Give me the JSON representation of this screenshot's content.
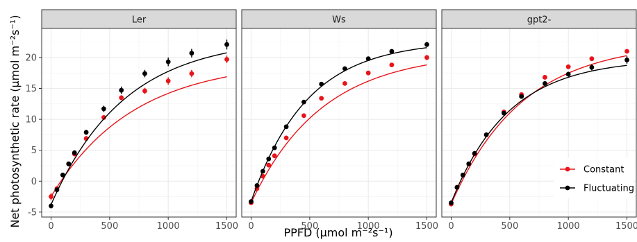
{
  "chart_data": {
    "type": "scatter",
    "xlabel": "PPFD (μmol m⁻²s⁻¹)",
    "ylabel": "Net photosynthetic rate (μmol m⁻²s⁻¹)",
    "xlim": [
      -80,
      1580
    ],
    "ylim": [
      -5.8,
      24.7
    ],
    "x_ticks": [
      0,
      500,
      1000,
      1500
    ],
    "y_ticks": [
      -5,
      0,
      5,
      10,
      15,
      20
    ],
    "x_tick_labels": [
      "0",
      "500",
      "1000",
      "1500"
    ],
    "y_tick_labels": [
      "-5",
      "0",
      "5",
      "10",
      "15",
      "20"
    ],
    "grid": true,
    "legend": {
      "position": "bottom-right of right panel",
      "entries": [
        {
          "label": "Constant",
          "color": "#e8141a"
        },
        {
          "label": "Fluctuating",
          "color": "#000000"
        }
      ]
    },
    "x": [
      0,
      50,
      100,
      150,
      200,
      300,
      450,
      600,
      800,
      1000,
      1200,
      1500
    ],
    "panels": [
      {
        "title": "Ler",
        "series": [
          {
            "name": "Constant",
            "color": "#e8141a",
            "y": [
              -2.5,
              -1.2,
              1.0,
              2.8,
              4.4,
              6.9,
              10.3,
              13.5,
              14.6,
              16.2,
              17.4,
              19.7
            ],
            "err": [
              0.6,
              0.4,
              0.3,
              0.3,
              0.4,
              0.4,
              0.3,
              0.4,
              0.5,
              0.6,
              0.6,
              0.6
            ],
            "fit": {
              "amax": 21.95,
              "rd": 2.5,
              "k": 0.00143
            }
          },
          {
            "name": "Fluctuating",
            "color": "#000000",
            "y": [
              -4.0,
              -1.4,
              1.0,
              2.8,
              4.6,
              7.9,
              11.7,
              14.7,
              17.4,
              19.3,
              20.7,
              22.1
            ],
            "err": [
              0.4,
              0.3,
              0.3,
              0.3,
              0.3,
              0.4,
              0.5,
              0.6,
              0.6,
              0.7,
              0.7,
              0.8
            ],
            "fit": {
              "amax": 27.0,
              "rd": 3.8,
              "k": 0.0016
            }
          }
        ]
      },
      {
        "title": "Ws",
        "series": [
          {
            "name": "Constant",
            "color": "#e8141a",
            "y": [
              -3.5,
              -1.2,
              0.8,
              2.6,
              4.1,
              7.0,
              10.6,
              13.4,
              15.8,
              17.5,
              18.8,
              20.0
            ],
            "err": [
              0.3,
              0.2,
              0.2,
              0.2,
              0.2,
              0.2,
              0.3,
              0.3,
              0.3,
              0.3,
              0.3,
              0.4
            ],
            "fit": {
              "amax": 24.35,
              "rd": 3.5,
              "k": 0.00165
            }
          },
          {
            "name": "Fluctuating",
            "color": "#000000",
            "y": [
              -3.3,
              -0.7,
              1.6,
              3.6,
              5.4,
              8.8,
              12.8,
              15.7,
              18.2,
              19.8,
              21.0,
              22.1
            ],
            "err": [
              0.3,
              0.2,
              0.2,
              0.2,
              0.2,
              0.2,
              0.2,
              0.3,
              0.3,
              0.3,
              0.3,
              0.4
            ],
            "fit": {
              "amax": 26.0,
              "rd": 3.3,
              "k": 0.0021
            }
          }
        ]
      },
      {
        "title": "gpt2-",
        "series": [
          {
            "name": "Constant",
            "color": "#e8141a",
            "y": [
              -3.7,
              -1.0,
              1.0,
              2.8,
              4.4,
              7.5,
              11.2,
              14.0,
              16.8,
              18.5,
              19.8,
              21.0
            ],
            "err": [
              0.2,
              0.2,
              0.2,
              0.2,
              0.2,
              0.2,
              0.2,
              0.3,
              0.3,
              0.3,
              0.3,
              0.3
            ],
            "fit": {
              "amax": 26.2,
              "rd": 3.7,
              "k": 0.00165
            }
          },
          {
            "name": "Fluctuating",
            "color": "#000000",
            "y": [
              -3.5,
              -1.0,
              1.0,
              2.8,
              4.5,
              7.5,
              11.0,
              13.7,
              15.8,
              17.3,
              18.4,
              19.6
            ],
            "err": [
              0.2,
              0.2,
              0.2,
              0.2,
              0.2,
              0.2,
              0.3,
              0.3,
              0.4,
              0.4,
              0.5,
              0.6
            ],
            "fit": {
              "amax": 23.3,
              "rd": 3.5,
              "k": 0.00205
            }
          }
        ]
      }
    ]
  }
}
